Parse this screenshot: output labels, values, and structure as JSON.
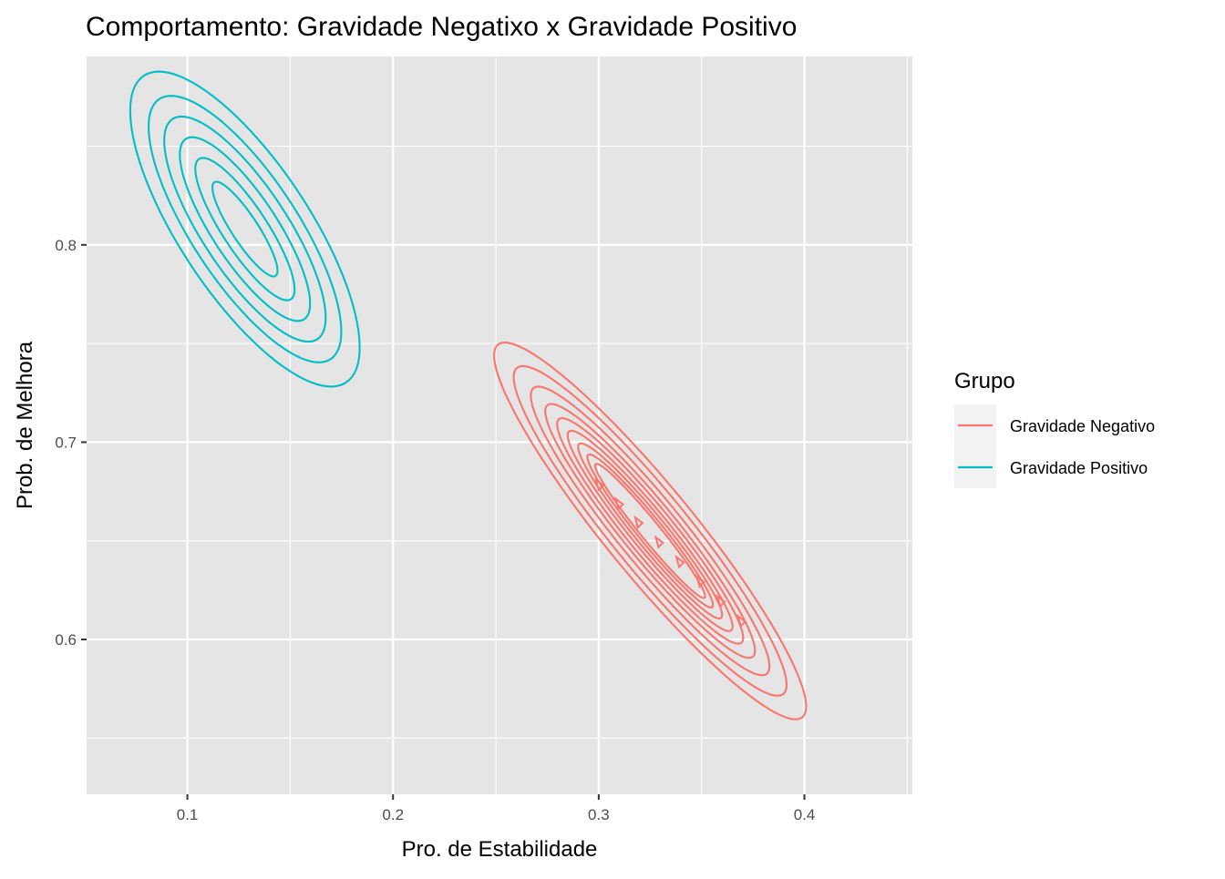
{
  "chart_data": {
    "type": "contour",
    "title": "Comportamento: Gravidade Negatixo x Gravidade Positivo",
    "xlabel": "Pro. de Estabilidade",
    "ylabel": "Prob. de Melhora",
    "xlim": [
      0.051,
      0.4525
    ],
    "ylim": [
      0.5215,
      0.8955
    ],
    "x_ticks": [
      "0.1",
      "0.2",
      "0.3",
      "0.4"
    ],
    "x_tick_values": [
      0.1,
      0.2,
      0.3,
      0.4
    ],
    "y_ticks": [
      "0.6",
      "0.7",
      "0.8"
    ],
    "y_tick_values": [
      0.6,
      0.7,
      0.8
    ],
    "panel_background": "#e5e5e5",
    "grid": true,
    "grid_color": "#ffffff",
    "legend": {
      "title": "Grupo",
      "placement": "right",
      "entries": [
        "Gravidade Negativo",
        "Gravidade Positivo"
      ]
    },
    "series": [
      {
        "name": "Gravidade Negativo",
        "color": "#f8766d",
        "center": [
          0.325,
          0.655
        ],
        "angle_deg": -52,
        "contours": [
          {
            "a": 0.12,
            "b": 0.022
          },
          {
            "a": 0.105,
            "b": 0.019
          },
          {
            "a": 0.092,
            "b": 0.016
          },
          {
            "a": 0.081,
            "b": 0.0135
          },
          {
            "a": 0.072,
            "b": 0.0115
          },
          {
            "a": 0.064,
            "b": 0.0095
          },
          {
            "a": 0.056,
            "b": 0.0078
          },
          {
            "a": 0.049,
            "b": 0.0062
          },
          {
            "a": 0.043,
            "b": 0.0048
          }
        ],
        "cells": [
          {
            "x": 0.3005,
            "y": 0.6785
          },
          {
            "x": 0.31,
            "y": 0.669
          },
          {
            "x": 0.3195,
            "y": 0.6595
          },
          {
            "x": 0.3295,
            "y": 0.6495
          },
          {
            "x": 0.3395,
            "y": 0.6395
          },
          {
            "x": 0.3495,
            "y": 0.6295
          },
          {
            "x": 0.3595,
            "y": 0.6195
          },
          {
            "x": 0.3695,
            "y": 0.6095
          }
        ]
      },
      {
        "name": "Gravidade Positivo",
        "color": "#00bfc4",
        "center": [
          0.128,
          0.808
        ],
        "angle_deg": -58,
        "contours": [
          {
            "a": 0.092,
            "b": 0.032
          },
          {
            "a": 0.078,
            "b": 0.026
          },
          {
            "a": 0.066,
            "b": 0.021
          },
          {
            "a": 0.054,
            "b": 0.016
          },
          {
            "a": 0.042,
            "b": 0.011
          },
          {
            "a": 0.028,
            "b": 0.0065
          }
        ],
        "cells": []
      }
    ]
  }
}
